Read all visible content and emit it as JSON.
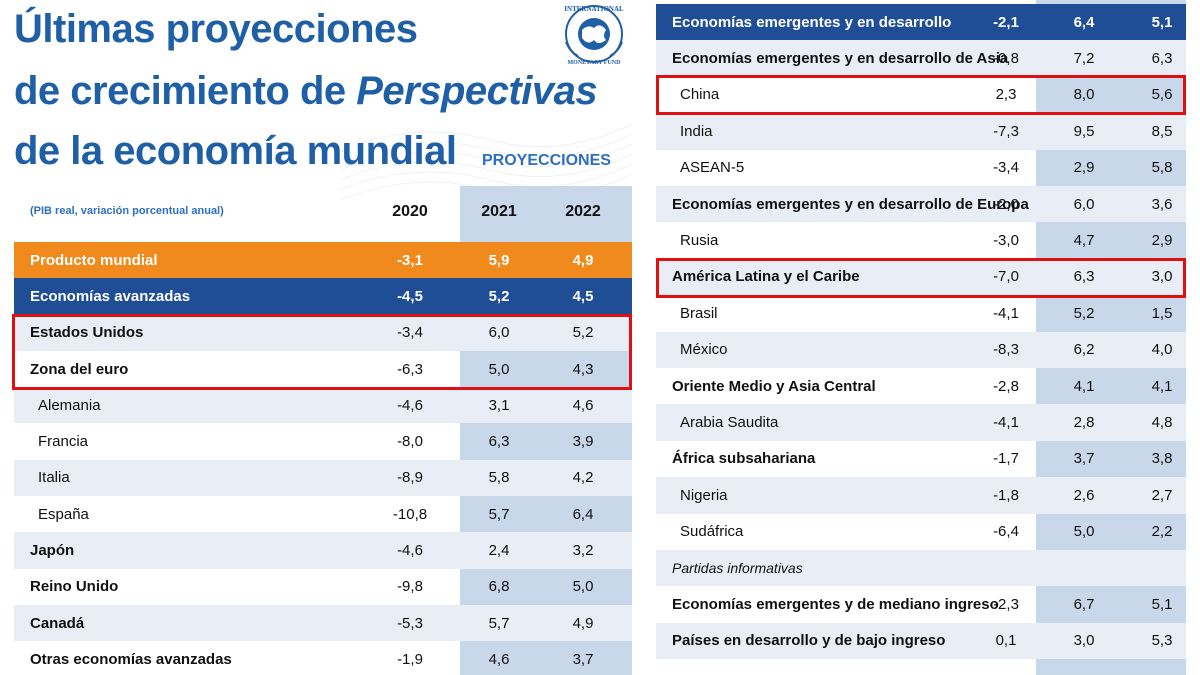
{
  "title": {
    "line1": "Últimas proyecciones",
    "line2_prefix": "de crecimiento de ",
    "line2_italic": "Perspectivas",
    "line3": "de la economía mundial"
  },
  "projections_label": "PROYECCIONES",
  "subtitle": "(PIB real, variación porcentual anual)",
  "years": [
    "2020",
    "2021",
    "2022"
  ],
  "logo": {
    "text_top": "INTERNATIONAL",
    "text_bottom": "MONETARY FUND",
    "icon": "imf-globe-seal-icon"
  },
  "colors": {
    "title": "#1e5fa6",
    "orange_row": "#f08a1c",
    "blue_row": "#1f4e97",
    "shade": "#c9d7ea",
    "highlight": "#e01010"
  },
  "chart_data": [
    {
      "type": "table",
      "title": "Últimas proyecciones de crecimiento de Perspectivas de la economía mundial",
      "columns": [
        "2020",
        "2021",
        "2022"
      ],
      "rows": [
        {
          "label": "Producto mundial",
          "values": [
            "-3,1",
            "5,9",
            "4,9"
          ],
          "style": "orange"
        },
        {
          "label": "Economías avanzadas",
          "values": [
            "-4,5",
            "5,2",
            "4,5"
          ],
          "style": "blue"
        },
        {
          "label": "Estados Unidos",
          "values": [
            "-3,4",
            "6,0",
            "5,2"
          ],
          "style": "bold",
          "highlighted": true
        },
        {
          "label": "Zona del euro",
          "values": [
            "-6,3",
            "5,0",
            "4,3"
          ],
          "style": "bold",
          "highlighted": true
        },
        {
          "label": "Alemania",
          "values": [
            "-4,6",
            "3,1",
            "4,6"
          ],
          "style": "indent"
        },
        {
          "label": "Francia",
          "values": [
            "-8,0",
            "6,3",
            "3,9"
          ],
          "style": "indent"
        },
        {
          "label": "Italia",
          "values": [
            "-8,9",
            "5,8",
            "4,2"
          ],
          "style": "indent"
        },
        {
          "label": "España",
          "values": [
            "-10,8",
            "5,7",
            "6,4"
          ],
          "style": "indent"
        },
        {
          "label": "Japón",
          "values": [
            "-4,6",
            "2,4",
            "3,2"
          ],
          "style": "bold"
        },
        {
          "label": "Reino Unido",
          "values": [
            "-9,8",
            "6,8",
            "5,0"
          ],
          "style": "bold"
        },
        {
          "label": "Canadá",
          "values": [
            "-5,3",
            "5,7",
            "4,9"
          ],
          "style": "bold"
        },
        {
          "label": "Otras economías avanzadas",
          "values": [
            "-1,9",
            "4,6",
            "3,7"
          ],
          "style": "bold"
        }
      ]
    },
    {
      "type": "table",
      "columns": [
        "2020",
        "2021",
        "2022"
      ],
      "rows": [
        {
          "label": "Economías emergentes y en desarrollo",
          "values": [
            "-2,1",
            "6,4",
            "5,1"
          ],
          "style": "blue"
        },
        {
          "label": "Economías emergentes y en desarrollo de Asia",
          "values": [
            "-0,8",
            "7,2",
            "6,3"
          ],
          "style": "bold"
        },
        {
          "label": "China",
          "values": [
            "2,3",
            "8,0",
            "5,6"
          ],
          "style": "indent",
          "highlighted": true
        },
        {
          "label": "India",
          "values": [
            "-7,3",
            "9,5",
            "8,5"
          ],
          "style": "indent"
        },
        {
          "label": "ASEAN-5",
          "values": [
            "-3,4",
            "2,9",
            "5,8"
          ],
          "style": "indent"
        },
        {
          "label": "Economías emergentes y en desarrollo de Europa",
          "values": [
            "-2,0",
            "6,0",
            "3,6"
          ],
          "style": "bold"
        },
        {
          "label": "Rusia",
          "values": [
            "-3,0",
            "4,7",
            "2,9"
          ],
          "style": "indent"
        },
        {
          "label": "América Latina y el Caribe",
          "values": [
            "-7,0",
            "6,3",
            "3,0"
          ],
          "style": "bold",
          "highlighted": true
        },
        {
          "label": "Brasil",
          "values": [
            "-4,1",
            "5,2",
            "1,5"
          ],
          "style": "indent"
        },
        {
          "label": "México",
          "values": [
            "-8,3",
            "6,2",
            "4,0"
          ],
          "style": "indent"
        },
        {
          "label": "Oriente Medio y Asia Central",
          "values": [
            "-2,8",
            "4,1",
            "4,1"
          ],
          "style": "bold"
        },
        {
          "label": "Arabia Saudita",
          "values": [
            "-4,1",
            "2,8",
            "4,8"
          ],
          "style": "indent"
        },
        {
          "label": "África subsahariana",
          "values": [
            "-1,7",
            "3,7",
            "3,8"
          ],
          "style": "bold"
        },
        {
          "label": "Nigeria",
          "values": [
            "-1,8",
            "2,6",
            "2,7"
          ],
          "style": "indent"
        },
        {
          "label": "Sudáfrica",
          "values": [
            "-6,4",
            "5,0",
            "2,2"
          ],
          "style": "indent"
        },
        {
          "label": "Partidas informativas",
          "values": [
            "",
            "",
            ""
          ],
          "style": "italic"
        },
        {
          "label": "Economías emergentes y de mediano ingreso",
          "values": [
            "-2,3",
            "6,7",
            "5,1"
          ],
          "style": "bold"
        },
        {
          "label": "Países en desarrollo y de bajo ingreso",
          "values": [
            "0,1",
            "3,0",
            "5,3"
          ],
          "style": "bold"
        }
      ]
    }
  ]
}
